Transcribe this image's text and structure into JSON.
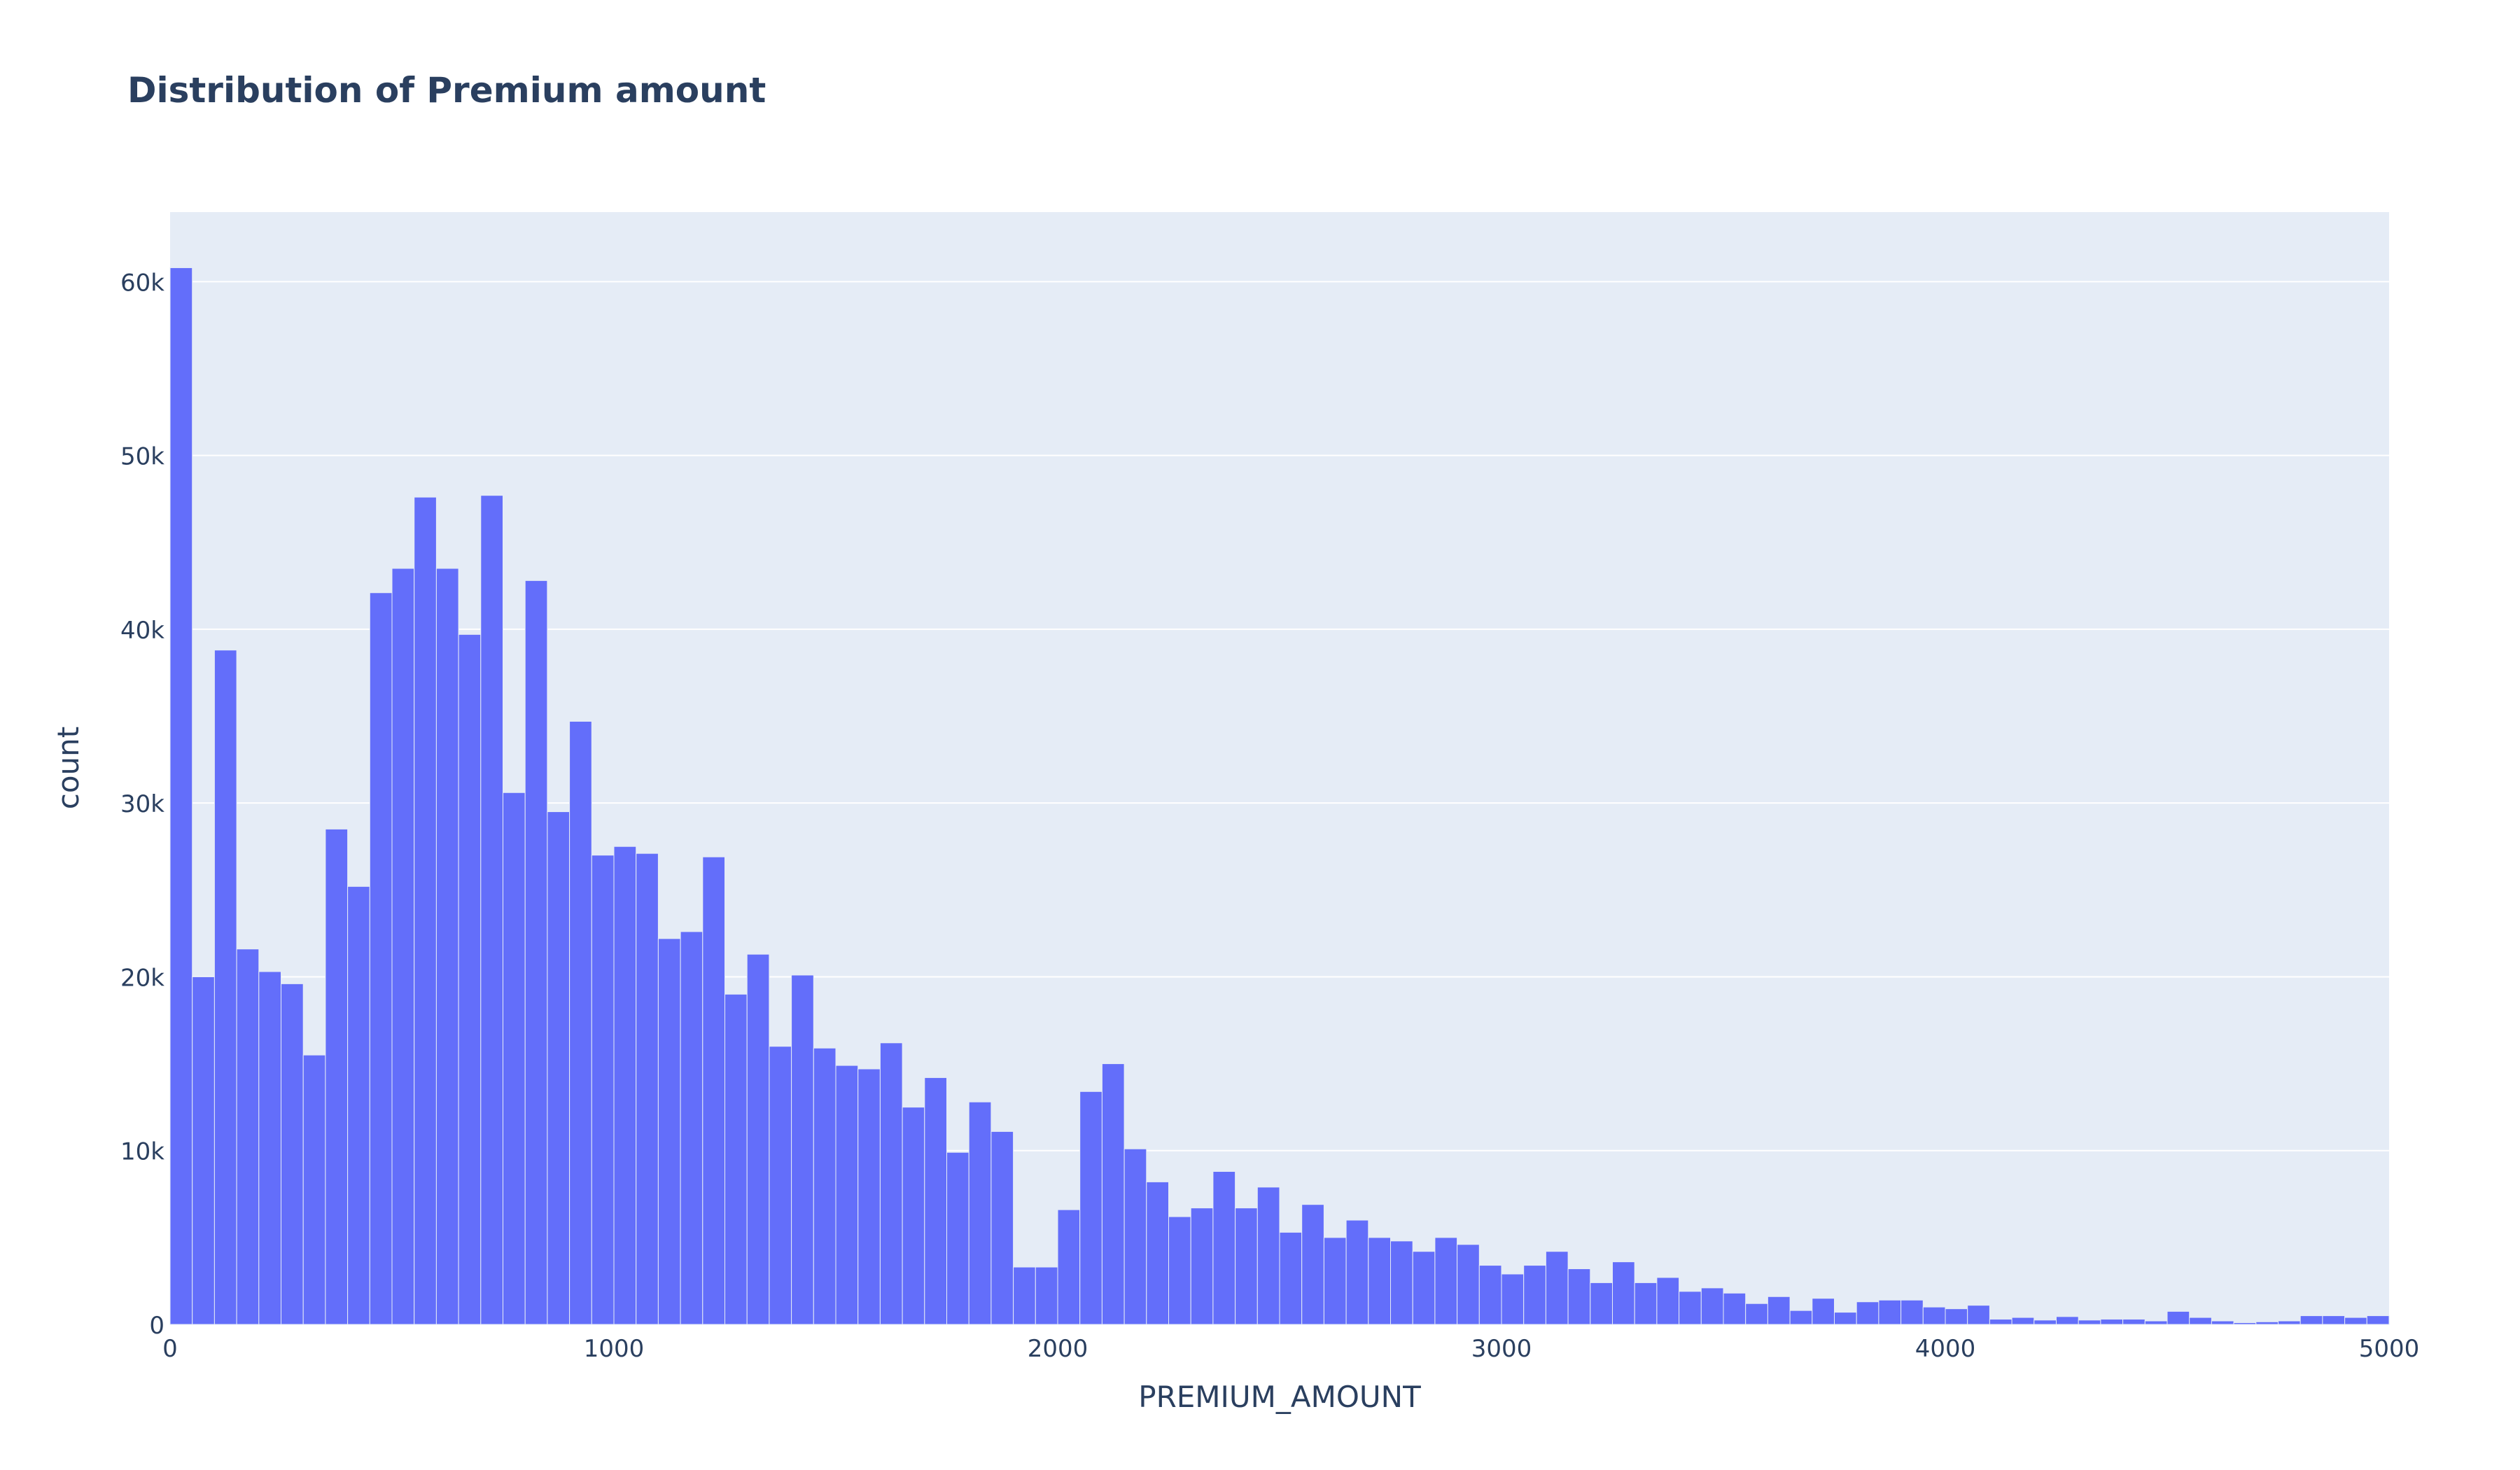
{
  "chart_data": {
    "type": "bar",
    "title": "Distribution of Premium amount",
    "xlabel": "PREMIUM_AMOUNT",
    "ylabel": "count",
    "xlim": [
      0,
      5000
    ],
    "ylim": [
      0,
      64000
    ],
    "bin_start": 0,
    "bin_width": 50,
    "x_ticks": [
      {
        "value": 0,
        "label": "0"
      },
      {
        "value": 1000,
        "label": "1000"
      },
      {
        "value": 2000,
        "label": "2000"
      },
      {
        "value": 3000,
        "label": "3000"
      },
      {
        "value": 4000,
        "label": "4000"
      },
      {
        "value": 5000,
        "label": "5000"
      }
    ],
    "y_ticks": [
      {
        "value": 0,
        "label": "0"
      },
      {
        "value": 10000,
        "label": "10k"
      },
      {
        "value": 20000,
        "label": "20k"
      },
      {
        "value": 30000,
        "label": "30k"
      },
      {
        "value": 40000,
        "label": "40k"
      },
      {
        "value": 50000,
        "label": "50k"
      },
      {
        "value": 60000,
        "label": "60k"
      }
    ],
    "grid": true,
    "colors": {
      "bar": "#636efa",
      "plot_bg": "#e5ecf6",
      "grid": "#ffffff",
      "text": "#2a3f5f"
    },
    "values": [
      60800,
      20000,
      38800,
      21600,
      20300,
      19600,
      15500,
      28500,
      25200,
      42100,
      43500,
      47600,
      43500,
      39700,
      47700,
      30600,
      42800,
      29500,
      34700,
      27000,
      27500,
      27100,
      22200,
      22600,
      26900,
      19000,
      21300,
      16000,
      20100,
      15900,
      14900,
      14700,
      16200,
      12500,
      14200,
      9900,
      12800,
      11100,
      3300,
      3300,
      6600,
      13400,
      15000,
      10100,
      8200,
      6200,
      6700,
      8800,
      6700,
      7900,
      5300,
      6900,
      5000,
      6000,
      5000,
      4800,
      4200,
      5000,
      4600,
      3400,
      2900,
      3400,
      4200,
      3200,
      2400,
      3600,
      2400,
      2700,
      1900,
      2100,
      1800,
      1200,
      1600,
      800,
      1500,
      700,
      1300,
      1400,
      1400,
      1000,
      900,
      1100,
      300,
      400,
      250,
      450,
      250,
      300,
      300,
      200,
      750,
      400,
      200,
      100,
      150,
      200,
      500,
      500,
      400,
      500
    ]
  }
}
